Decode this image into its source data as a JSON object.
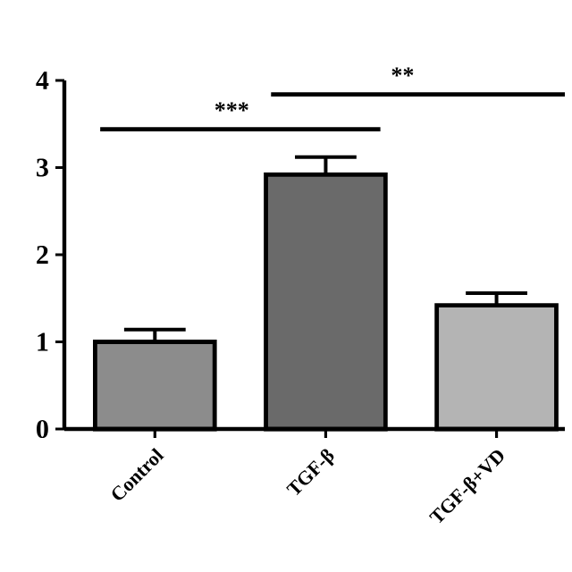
{
  "chart_data": {
    "type": "bar",
    "categories": [
      "Control",
      "TGF-β",
      "TGF-β+VD"
    ],
    "values": [
      1.0,
      2.92,
      1.42
    ],
    "errors": [
      [
        1.0,
        1.14
      ],
      [
        2.92,
        3.12
      ],
      [
        1.42,
        1.56
      ]
    ],
    "colors": [
      "#8c8c8c",
      "#6a6a6a",
      "#b4b4b4"
    ],
    "ylim": [
      0,
      4
    ],
    "yticks": [
      0,
      1,
      2,
      3,
      4
    ],
    "annotations": [
      "***",
      "**"
    ],
    "grid": false
  }
}
